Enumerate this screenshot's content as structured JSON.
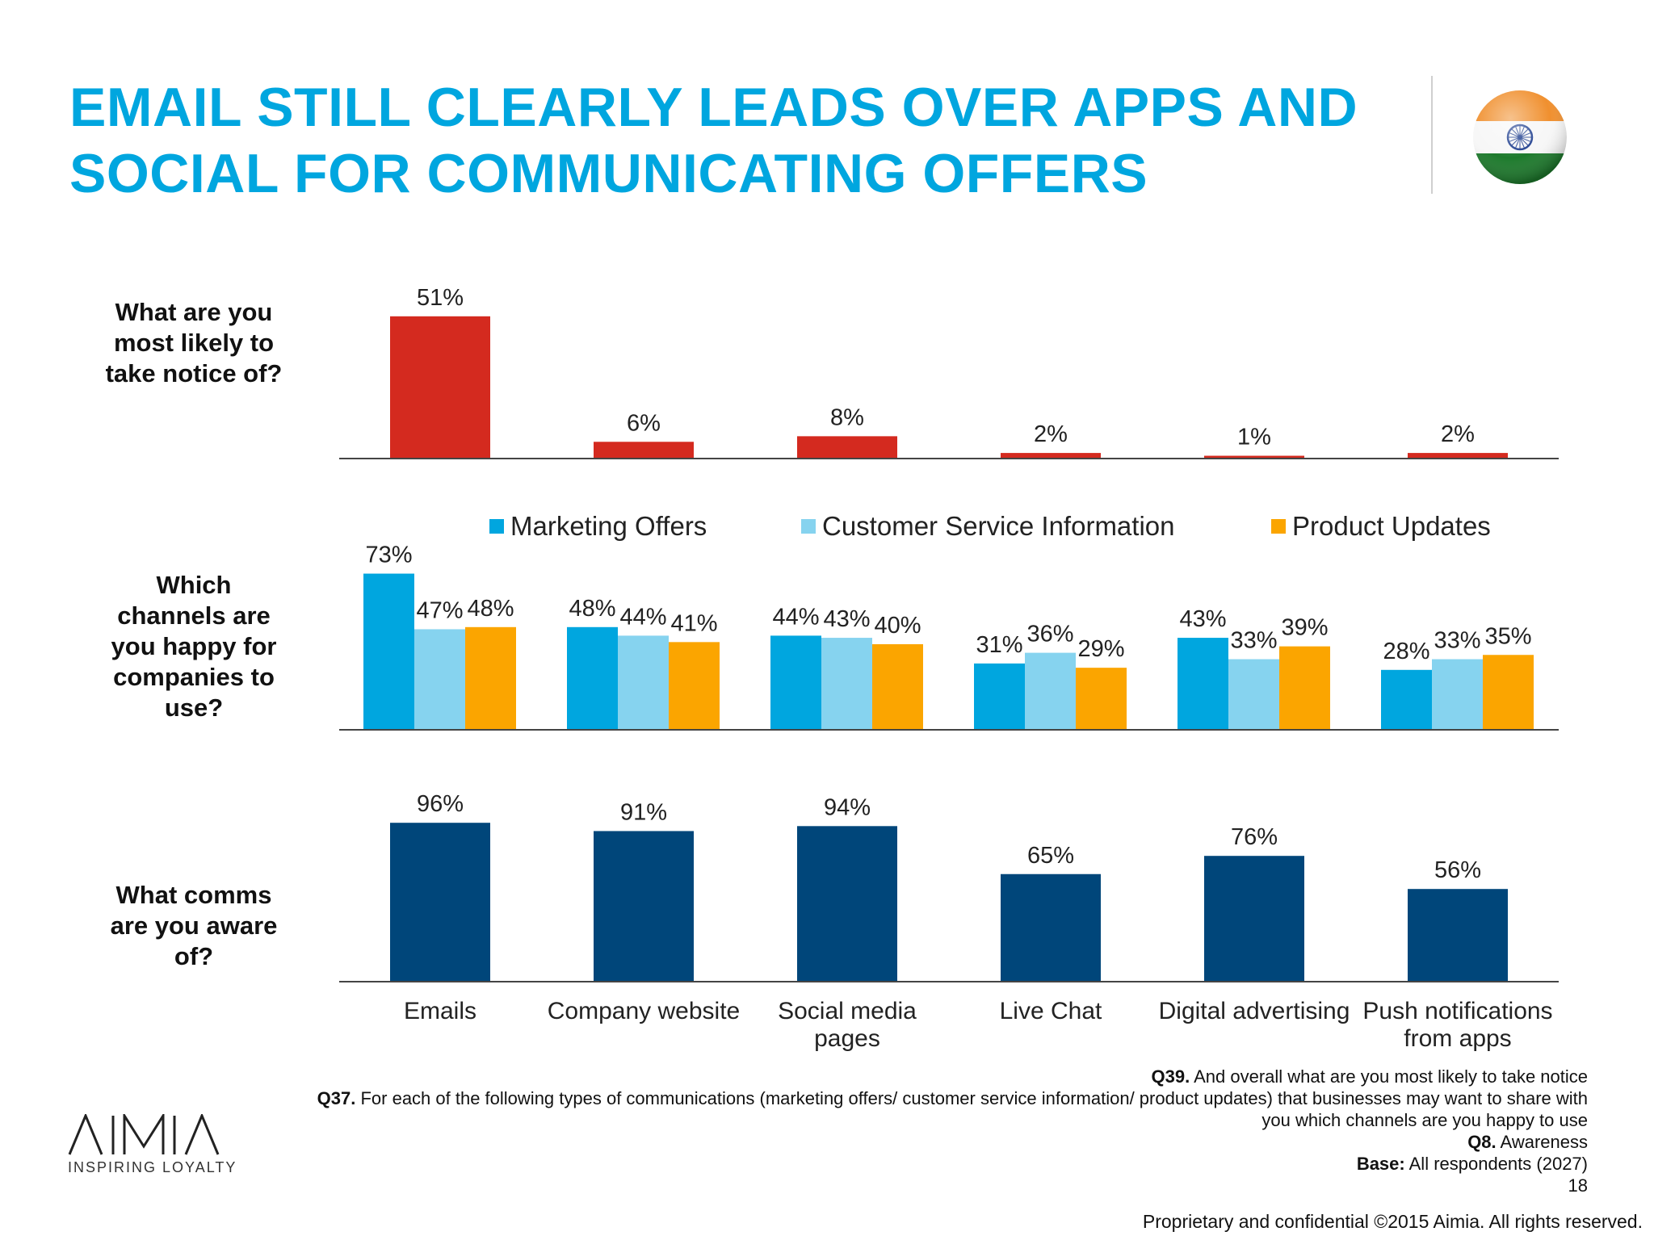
{
  "slide": {
    "title_line1": "EMAIL STILL CLEARLY LEADS OVER APPS AND",
    "title_line2": "SOCIAL FOR COMMUNICATING OFFERS",
    "page_number": "18",
    "copyright": "Proprietary and confidential ©2015 Aimia. All rights reserved.",
    "logo_word": "AIMIA",
    "logo_tagline": "INSPIRING LOYALTY",
    "flag_icon": "india-flag-icon"
  },
  "questions": {
    "q1": [
      "What are you",
      "most likely to",
      "take notice of?"
    ],
    "q2": [
      "Which",
      "channels are",
      "you happy for",
      "companies to",
      "use?"
    ],
    "q3": [
      "What comms",
      "are you aware",
      "of?"
    ]
  },
  "footnotes": {
    "q39_label": "Q39.",
    "q39_text": " And overall what are you most likely to take notice",
    "q37_label": "Q37.",
    "q37_text_1": " For each of the following types of communications (marketing offers/ customer service information/ product updates) that businesses may want to share with",
    "q37_text_2": "you which channels are you happy to use",
    "q8_label": "Q8.",
    "q8_text": "  Awareness",
    "base_label": "Base:",
    "base_text": " All respondents (2027)"
  },
  "colors": {
    "title": "#00a6df",
    "notice": "#d42a1f",
    "marketing_offers": "#00a6df",
    "customer_service": "#86d3ef",
    "product_updates": "#fba500",
    "awareness": "#00467a"
  },
  "chart_data": [
    {
      "type": "bar",
      "categories": [
        "Emails",
        "Company website",
        "Social media pages",
        "Live Chat",
        "Digital advertising",
        "Push notifications from apps"
      ],
      "category_labels": [
        [
          "Emails"
        ],
        [
          "Company website"
        ],
        [
          "Social media",
          "pages"
        ],
        [
          "Live Chat"
        ],
        [
          "Digital advertising"
        ],
        [
          "Push notifications",
          "from apps"
        ]
      ],
      "values": [
        51,
        6,
        8,
        2,
        1,
        2
      ],
      "value_labels": [
        "51%",
        "6%",
        "8%",
        "2%",
        "1%",
        "2%"
      ],
      "ylim": [
        0,
        55
      ]
    },
    {
      "type": "bar",
      "categories": [
        "Emails",
        "Company website",
        "Social media pages",
        "Live Chat",
        "Digital advertising",
        "Push notifications from apps"
      ],
      "series": [
        {
          "name": "Marketing Offers",
          "values": [
            73,
            48,
            44,
            31,
            43,
            28
          ],
          "labels": [
            "73%",
            "48%",
            "44%",
            "31%",
            "43%",
            "28%"
          ]
        },
        {
          "name": "Customer Service Information",
          "values": [
            47,
            44,
            43,
            36,
            33,
            33
          ],
          "labels": [
            "47%",
            "44%",
            "43%",
            "36%",
            "33%",
            "33%"
          ]
        },
        {
          "name": "Product Updates",
          "values": [
            48,
            41,
            40,
            29,
            39,
            35
          ],
          "labels": [
            "48%",
            "41%",
            "40%",
            "29%",
            "39%",
            "35%"
          ]
        }
      ],
      "legend": "top",
      "ylim": [
        0,
        80
      ]
    },
    {
      "type": "bar",
      "categories": [
        "Emails",
        "Company website",
        "Social media pages",
        "Live Chat",
        "Digital advertising",
        "Push notifications from apps"
      ],
      "values": [
        96,
        91,
        94,
        65,
        76,
        56
      ],
      "value_labels": [
        "96%",
        "91%",
        "94%",
        "65%",
        "76%",
        "56%"
      ],
      "ylim": [
        0,
        100
      ]
    }
  ]
}
